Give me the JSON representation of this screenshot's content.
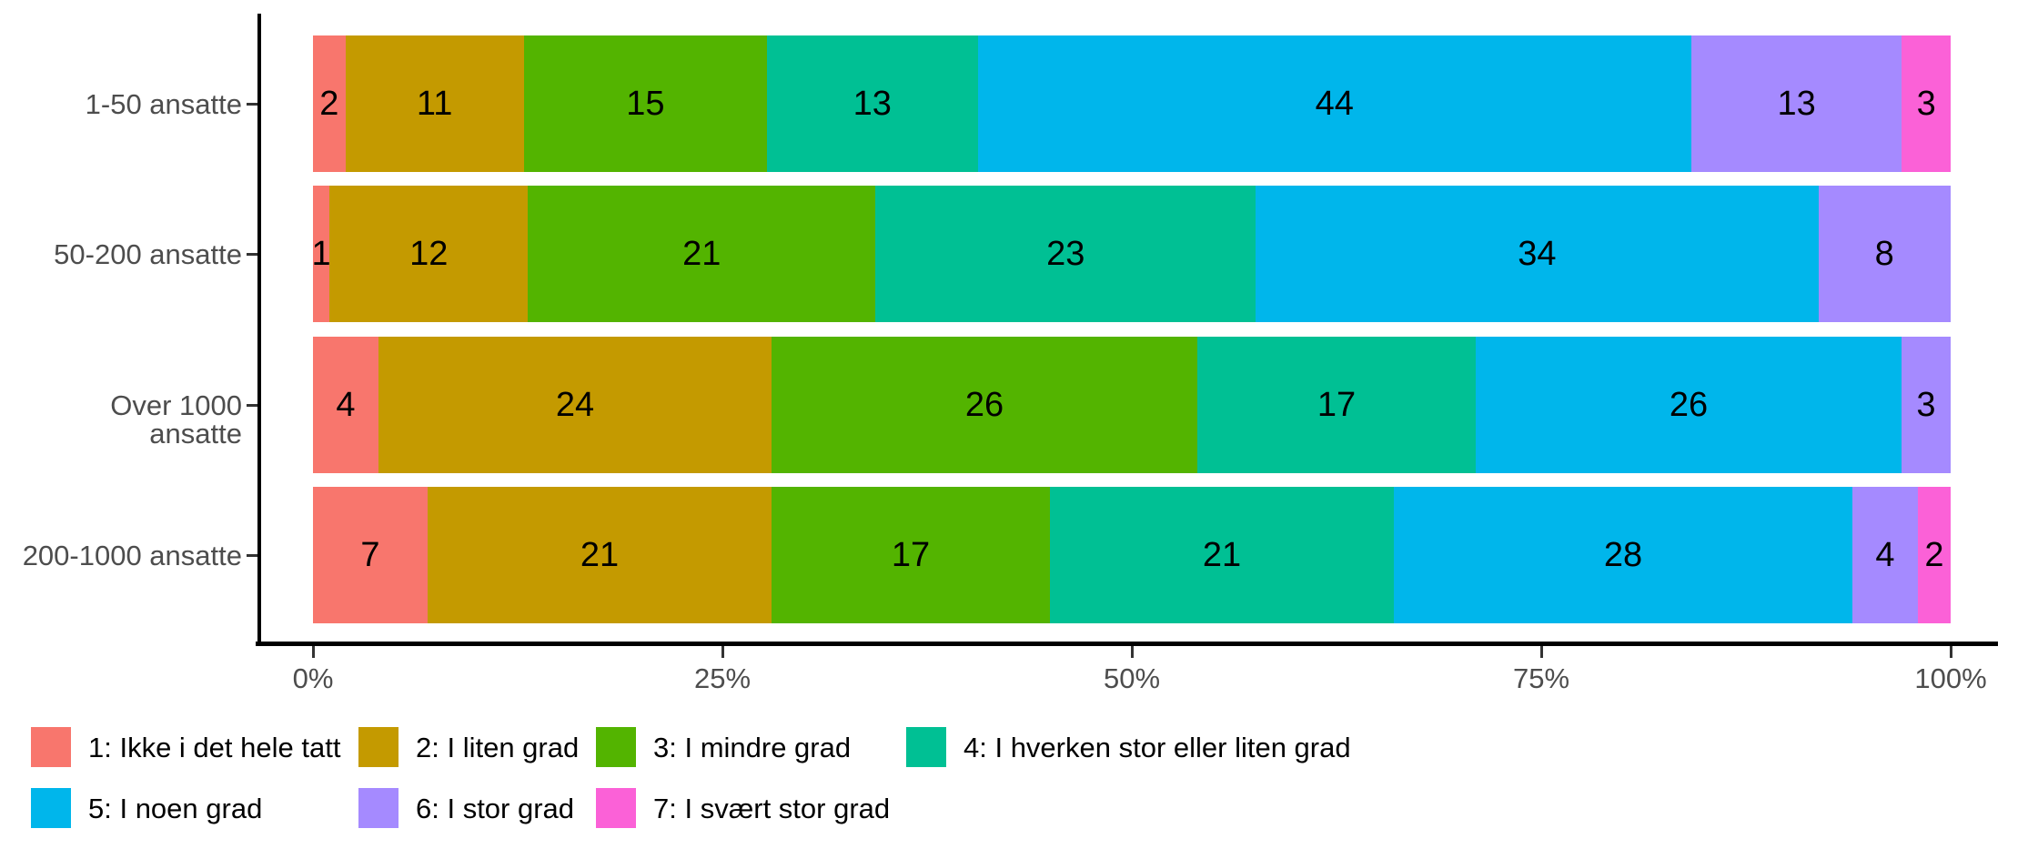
{
  "chart_data": {
    "type": "bar",
    "subtype": "horizontal-stacked-percent",
    "title": "",
    "xlabel": "",
    "ylabel": "",
    "xlim": [
      0,
      100
    ],
    "grid": false,
    "legend_position": "bottom",
    "x_ticks": [
      {
        "value": 0,
        "label": "0%"
      },
      {
        "value": 25,
        "label": "25%"
      },
      {
        "value": 50,
        "label": "50%"
      },
      {
        "value": 75,
        "label": "75%"
      },
      {
        "value": 100,
        "label": "100%"
      }
    ],
    "categories": [
      "1-50 ansatte",
      "50-200 ansatte",
      "Over 1000 ansatte",
      "200-1000 ansatte"
    ],
    "series": [
      {
        "name": "1: Ikke i det hele tatt",
        "color": "#F8766D",
        "values": [
          2,
          1,
          4,
          7
        ]
      },
      {
        "name": "2: I liten grad",
        "color": "#C49A00",
        "values": [
          11,
          12,
          24,
          21
        ]
      },
      {
        "name": "3: I mindre grad",
        "color": "#53B400",
        "values": [
          15,
          21,
          26,
          17
        ]
      },
      {
        "name": "4: I hverken stor eller liten grad",
        "color": "#00C094",
        "values": [
          13,
          23,
          17,
          21
        ]
      },
      {
        "name": "5: I noen grad",
        "color": "#00B6EB",
        "values": [
          44,
          34,
          26,
          28
        ]
      },
      {
        "name": "6: I stor grad",
        "color": "#A58AFF",
        "values": [
          13,
          8,
          3,
          4
        ]
      },
      {
        "name": "7: I svært stor grad",
        "color": "#FB61D7",
        "values": [
          3,
          0,
          0,
          2
        ]
      }
    ],
    "legend_rows": [
      [
        0,
        1,
        2,
        3
      ],
      [
        4,
        5,
        6
      ]
    ],
    "colors": {
      "axis_text": "#4D4D4D",
      "axis_line": "#000000",
      "bar_label": "#000000",
      "background": "#FFFFFF"
    }
  }
}
